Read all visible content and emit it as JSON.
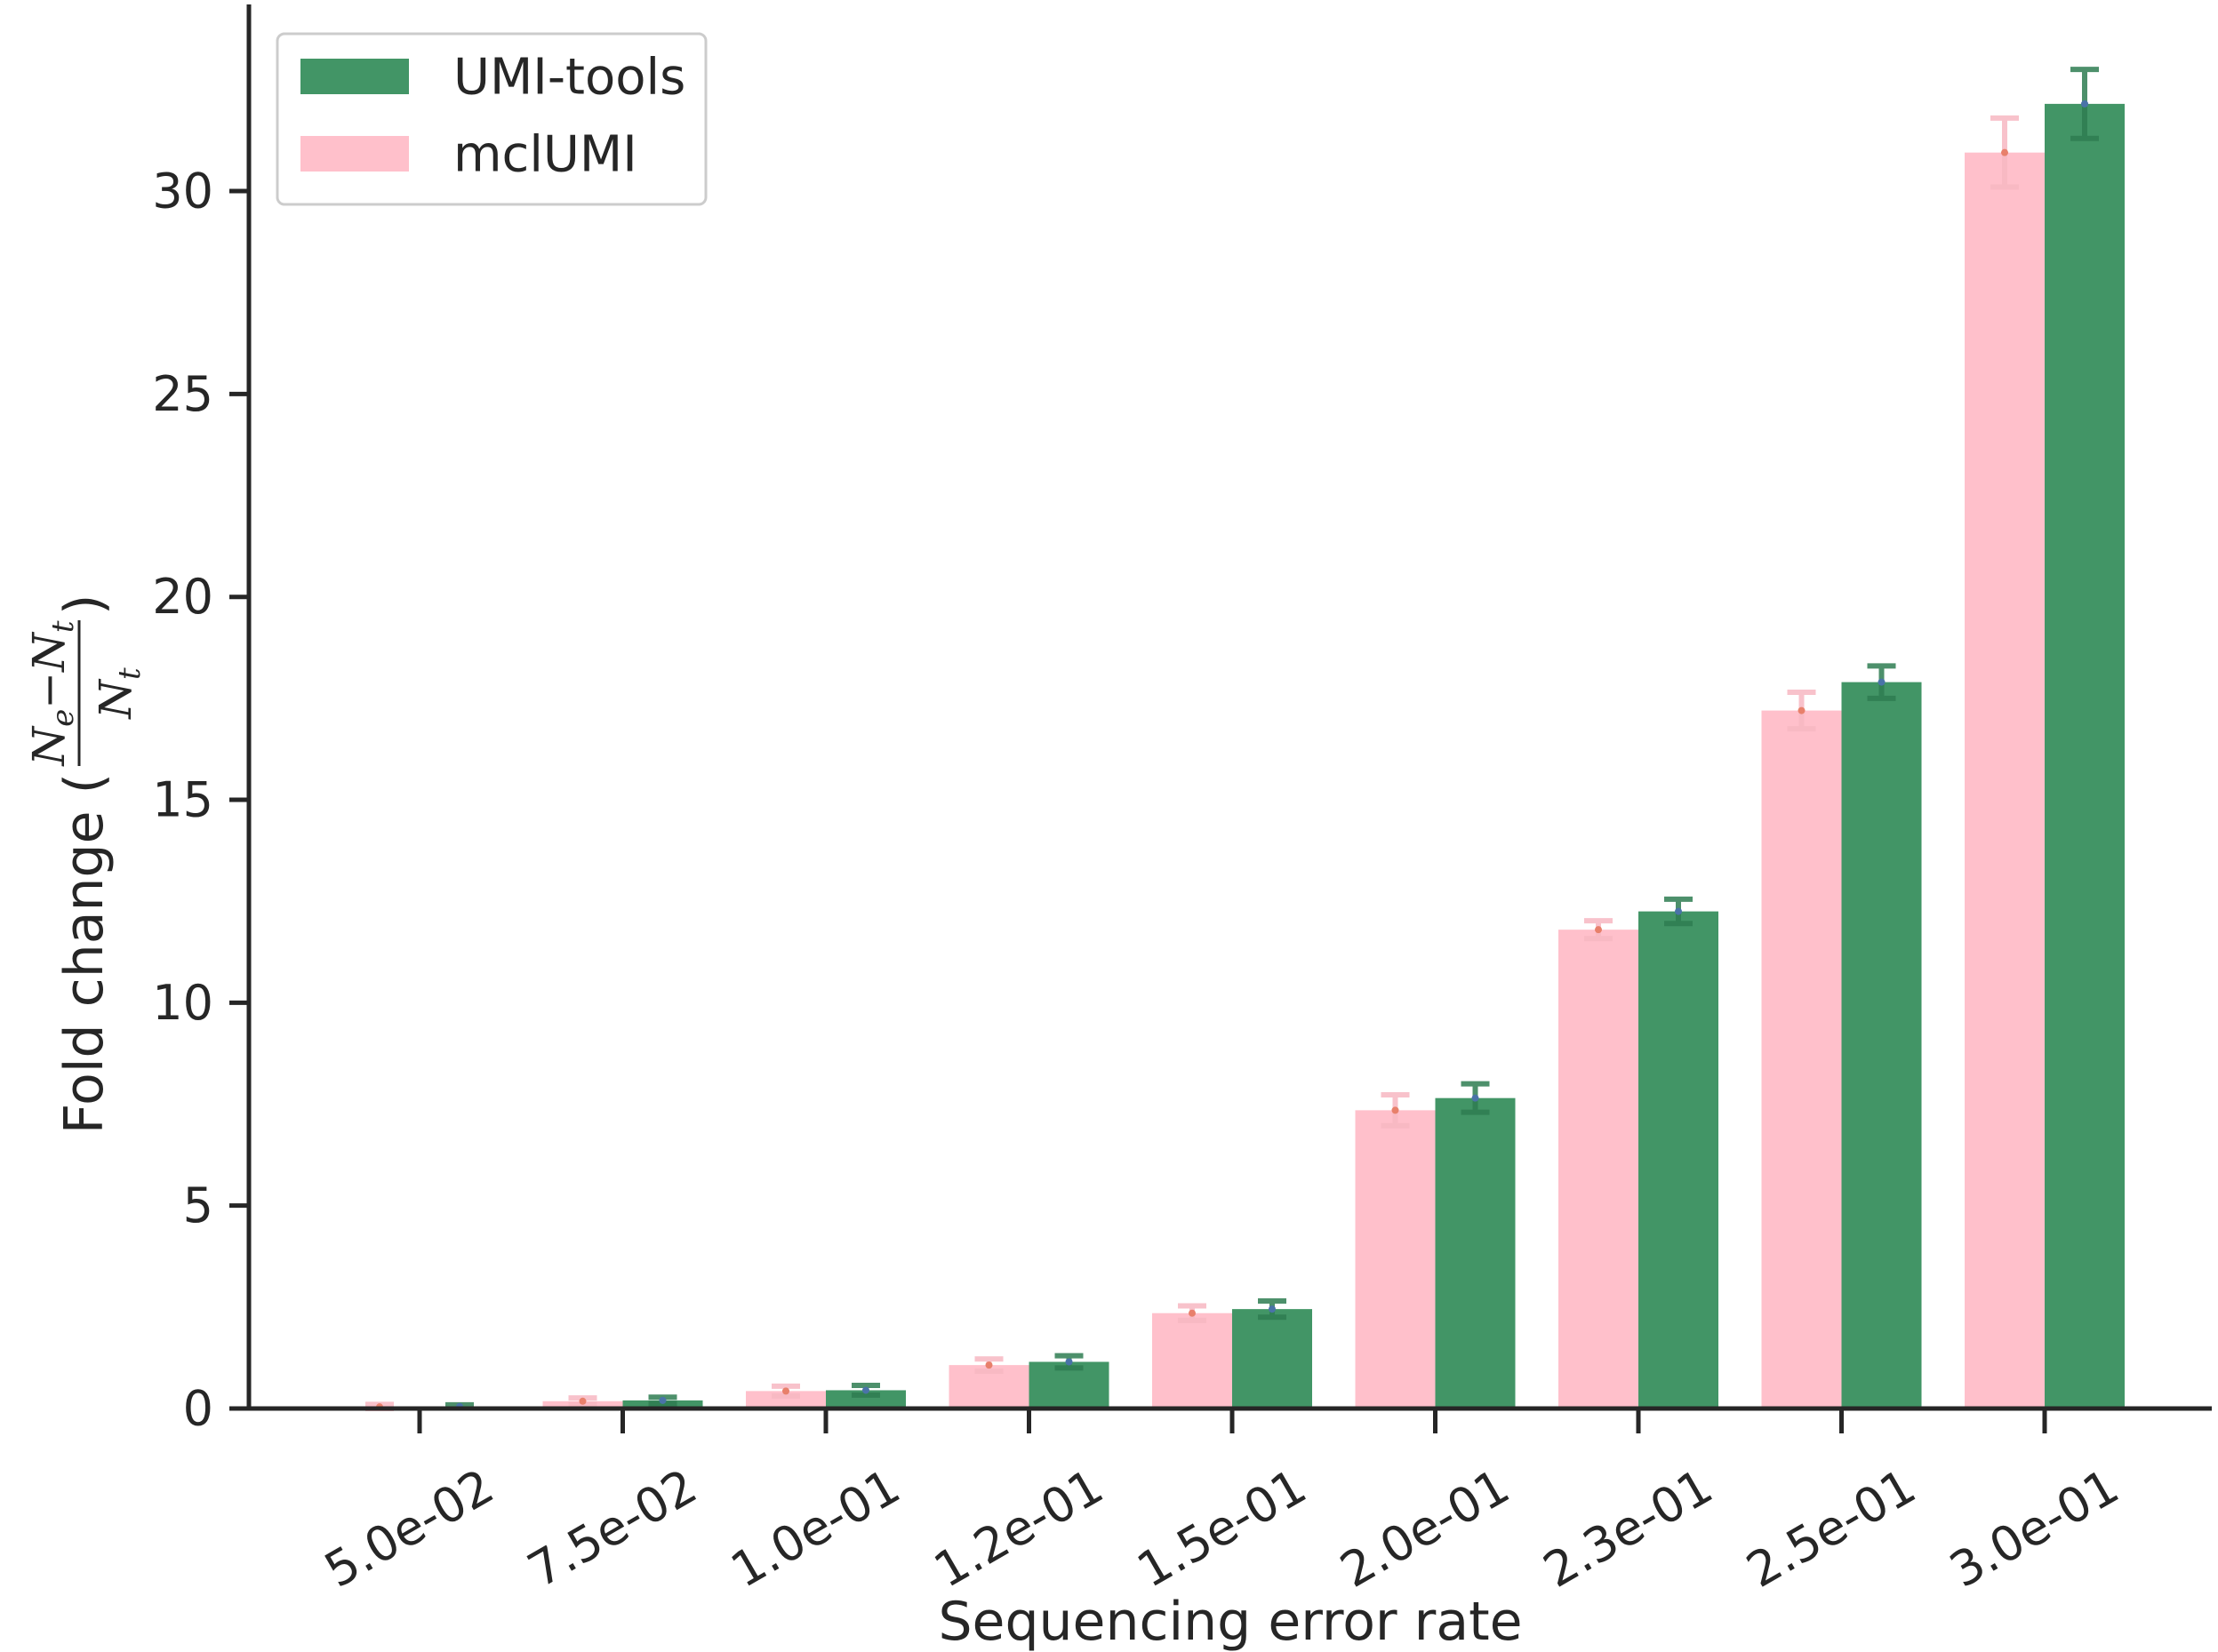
{
  "chart_data": {
    "type": "bar",
    "xlabel": "Sequencing error rate",
    "ylabel": "Fold change (",
    "ylabel_formula": {
      "numerator_a": "N",
      "numerator_a_sub": "e",
      "minus": "−",
      "numerator_b": "N",
      "numerator_b_sub": "t",
      "denominator": "N",
      "denominator_sub": "t",
      "close": ")"
    },
    "categories": [
      "5.0e-02",
      "7.5e-02",
      "1.0e-01",
      "1.2e-01",
      "1.5e-01",
      "2.0e-01",
      "2.3e-01",
      "2.5e-01",
      "3.0e-01"
    ],
    "ylim": [
      0,
      34.6
    ],
    "yticks": [
      0,
      5,
      10,
      15,
      20,
      25,
      30
    ],
    "grid": false,
    "legend_position": "top-left",
    "series": [
      {
        "name": "mclUMI",
        "color": "#FFC0CB",
        "values": [
          0.04,
          0.18,
          0.43,
          1.07,
          2.35,
          7.35,
          11.8,
          17.2,
          30.95
        ],
        "errors": [
          0.06,
          0.08,
          0.12,
          0.15,
          0.18,
          0.38,
          0.22,
          0.45,
          0.85
        ]
      },
      {
        "name": "UMI-tools",
        "color": "#429566",
        "values": [
          0.05,
          0.2,
          0.45,
          1.15,
          2.45,
          7.65,
          12.25,
          17.9,
          32.15
        ],
        "errors": [
          0.04,
          0.08,
          0.12,
          0.15,
          0.2,
          0.35,
          0.3,
          0.4,
          0.85
        ]
      }
    ]
  }
}
